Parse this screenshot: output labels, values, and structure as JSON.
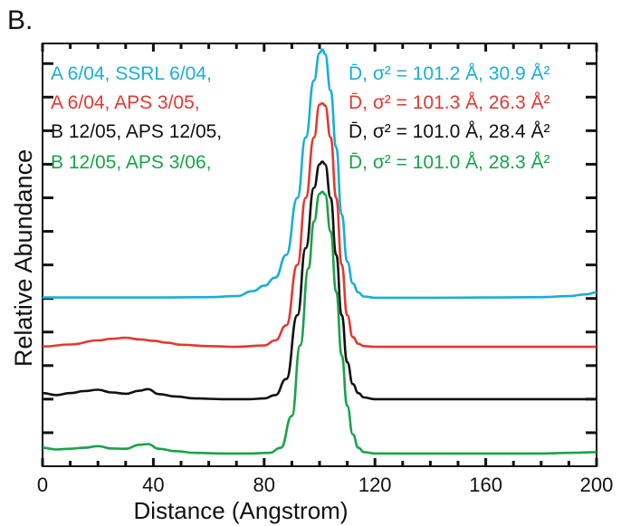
{
  "panel_label": "B.",
  "chart_data": {
    "type": "line",
    "title": "",
    "xlabel": "Distance (Angstrom)",
    "ylabel": "Relative Abundance",
    "xlim": [
      0,
      200
    ],
    "x_ticks": [
      0,
      40,
      80,
      120,
      160,
      200
    ],
    "x_minor_step": 10,
    "y_scale": "arbitrary (curves vertically offset)",
    "ylim": [
      0,
      12.6
    ],
    "y_ticks": [
      1,
      2,
      3,
      4,
      5,
      6,
      7,
      8,
      9,
      10,
      11,
      12
    ],
    "grid": false,
    "legend_position": "top",
    "series": [
      {
        "name": "A 6/04, SSRL 6/04,",
        "stats": "D̄, σ² = 101.2 Å, 30.9 Å²",
        "color": "#1aaed6",
        "x": [
          0,
          20,
          40,
          60,
          70,
          76,
          80,
          84,
          88,
          92,
          95,
          98,
          100,
          101,
          102,
          104,
          106,
          108,
          110,
          112,
          114,
          116,
          120,
          140,
          160,
          180,
          190,
          196,
          200
        ],
        "y": [
          5.03,
          5.03,
          5.03,
          5.04,
          5.07,
          5.22,
          5.38,
          5.62,
          6.3,
          8.0,
          9.8,
          11.5,
          12.32,
          12.42,
          12.28,
          11.2,
          9.5,
          7.5,
          6.1,
          5.45,
          5.18,
          5.06,
          5.02,
          5.02,
          5.03,
          5.04,
          5.07,
          5.12,
          5.18
        ]
      },
      {
        "name": "A 6/04, APS 3/05,",
        "stats": "D̄, σ² = 101.3 Å, 26.3 Å²",
        "color": "#e03a32",
        "x": [
          0,
          10,
          20,
          25,
          30,
          35,
          40,
          45,
          50,
          60,
          70,
          80,
          84,
          88,
          92,
          95,
          98,
          100,
          101,
          102,
          104,
          106,
          108,
          110,
          112,
          114,
          116,
          120,
          140,
          160,
          180,
          200
        ],
        "y": [
          3.57,
          3.63,
          3.75,
          3.8,
          3.83,
          3.78,
          3.74,
          3.68,
          3.62,
          3.58,
          3.56,
          3.6,
          3.75,
          4.2,
          6.0,
          8.0,
          9.8,
          10.78,
          10.82,
          10.75,
          9.8,
          8.0,
          6.0,
          4.5,
          3.85,
          3.65,
          3.58,
          3.56,
          3.56,
          3.56,
          3.56,
          3.56
        ]
      },
      {
        "name": "B 12/05, APS 12/05,",
        "stats": "D̄, σ² = 101.0 Å, 28.4 Å²",
        "color": "#111111",
        "x": [
          0,
          5,
          10,
          15,
          20,
          25,
          30,
          35,
          38,
          42,
          48,
          55,
          65,
          75,
          80,
          84,
          88,
          92,
          95,
          98,
          100,
          101,
          102,
          104,
          106,
          108,
          110,
          112,
          114,
          116,
          120,
          140,
          160,
          180,
          200
        ],
        "y": [
          2.18,
          2.12,
          2.18,
          2.24,
          2.28,
          2.2,
          2.16,
          2.25,
          2.3,
          2.15,
          2.08,
          2.02,
          2.0,
          2.0,
          2.02,
          2.12,
          2.6,
          4.5,
          6.5,
          8.3,
          9.0,
          9.08,
          9.0,
          8.0,
          6.3,
          4.5,
          3.1,
          2.45,
          2.18,
          2.05,
          2.0,
          2.0,
          2.0,
          2.0,
          2.0
        ]
      },
      {
        "name": "B 12/05, APS 3/06,",
        "stats": "D̄, σ² = 101.0 Å, 28.3 Å²",
        "color": "#1aa34a",
        "x": [
          0,
          5,
          10,
          15,
          20,
          25,
          30,
          35,
          38,
          42,
          48,
          55,
          65,
          75,
          82,
          86,
          90,
          93,
          96,
          98,
          100,
          101,
          102,
          104,
          106,
          108,
          110,
          112,
          114,
          116,
          120,
          140,
          160,
          180,
          190,
          200
        ],
        "y": [
          0.55,
          0.5,
          0.52,
          0.55,
          0.6,
          0.53,
          0.52,
          0.64,
          0.66,
          0.52,
          0.45,
          0.4,
          0.38,
          0.38,
          0.4,
          0.55,
          1.5,
          3.6,
          5.9,
          7.3,
          8.12,
          8.18,
          8.1,
          7.0,
          5.2,
          3.3,
          1.8,
          0.95,
          0.55,
          0.42,
          0.38,
          0.38,
          0.38,
          0.38,
          0.4,
          0.42
        ]
      }
    ]
  }
}
